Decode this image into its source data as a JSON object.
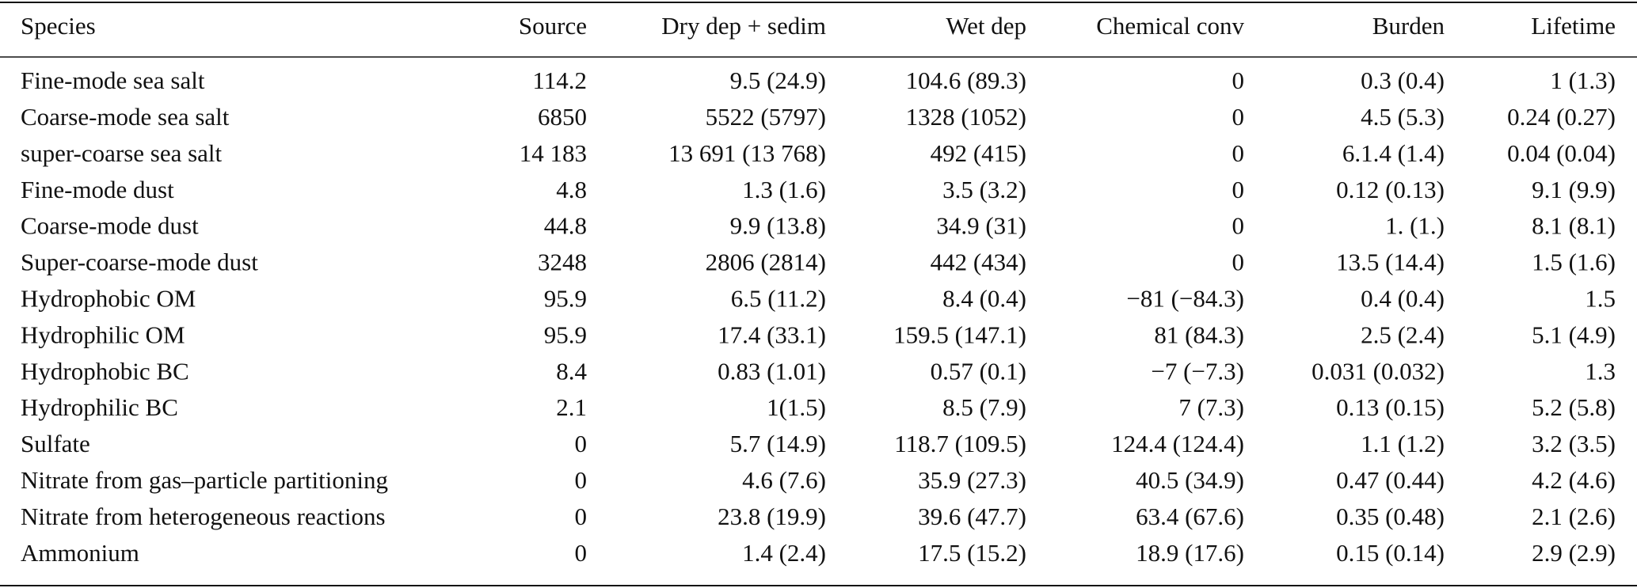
{
  "table": {
    "columns": [
      "Species",
      "Source",
      "Dry dep + sedim",
      "Wet dep",
      "Chemical conv",
      "Burden",
      "Lifetime"
    ],
    "rows": [
      [
        "Fine-mode sea salt",
        "114.2",
        "9.5 (24.9)",
        "104.6 (89.3)",
        "0",
        "0.3 (0.4)",
        "1 (1.3)"
      ],
      [
        "Coarse-mode sea salt",
        "6850",
        "5522 (5797)",
        "1328 (1052)",
        "0",
        "4.5 (5.3)",
        "0.24 (0.27)"
      ],
      [
        "super-coarse sea salt",
        "14 183",
        "13 691 (13 768)",
        "492 (415)",
        "0",
        "6.1.4 (1.4)",
        "0.04 (0.04)"
      ],
      [
        "Fine-mode dust",
        "4.8",
        "1.3 (1.6)",
        "3.5 (3.2)",
        "0",
        "0.12 (0.13)",
        "9.1 (9.9)"
      ],
      [
        "Coarse-mode dust",
        "44.8",
        "9.9 (13.8)",
        "34.9 (31)",
        "0",
        "1. (1.)",
        "8.1 (8.1)"
      ],
      [
        "Super-coarse-mode dust",
        "3248",
        "2806 (2814)",
        "442 (434)",
        "0",
        "13.5 (14.4)",
        "1.5 (1.6)"
      ],
      [
        "Hydrophobic OM",
        "95.9",
        "6.5 (11.2)",
        "8.4 (0.4)",
        "−81 (−84.3)",
        "0.4 (0.4)",
        "1.5"
      ],
      [
        "Hydrophilic OM",
        "95.9",
        "17.4 (33.1)",
        "159.5 (147.1)",
        "81 (84.3)",
        "2.5 (2.4)",
        "5.1 (4.9)"
      ],
      [
        "Hydrophobic BC",
        "8.4",
        "0.83 (1.01)",
        "0.57 (0.1)",
        "−7 (−7.3)",
        "0.031 (0.032)",
        "1.3"
      ],
      [
        "Hydrophilic BC",
        "2.1",
        "1(1.5)",
        "8.5 (7.9)",
        "7 (7.3)",
        "0.13 (0.15)",
        "5.2 (5.8)"
      ],
      [
        "Sulfate",
        "0",
        "5.7 (14.9)",
        "118.7 (109.5)",
        "124.4 (124.4)",
        "1.1 (1.2)",
        "3.2 (3.5)"
      ],
      [
        "Nitrate from gas–particle partitioning",
        "0",
        "4.6 (7.6)",
        "35.9 (27.3)",
        "40.5 (34.9)",
        "0.47 (0.44)",
        "4.2 (4.6)"
      ],
      [
        "Nitrate from heterogeneous reactions",
        "0",
        "23.8 (19.9)",
        "39.6 (47.7)",
        "63.4 (67.6)",
        "0.35 (0.48)",
        "2.1 (2.6)"
      ],
      [
        "Ammonium",
        "0",
        "1.4 (2.4)",
        "17.5 (15.2)",
        "18.9 (17.6)",
        "0.15 (0.14)",
        "2.9 (2.9)"
      ]
    ]
  }
}
